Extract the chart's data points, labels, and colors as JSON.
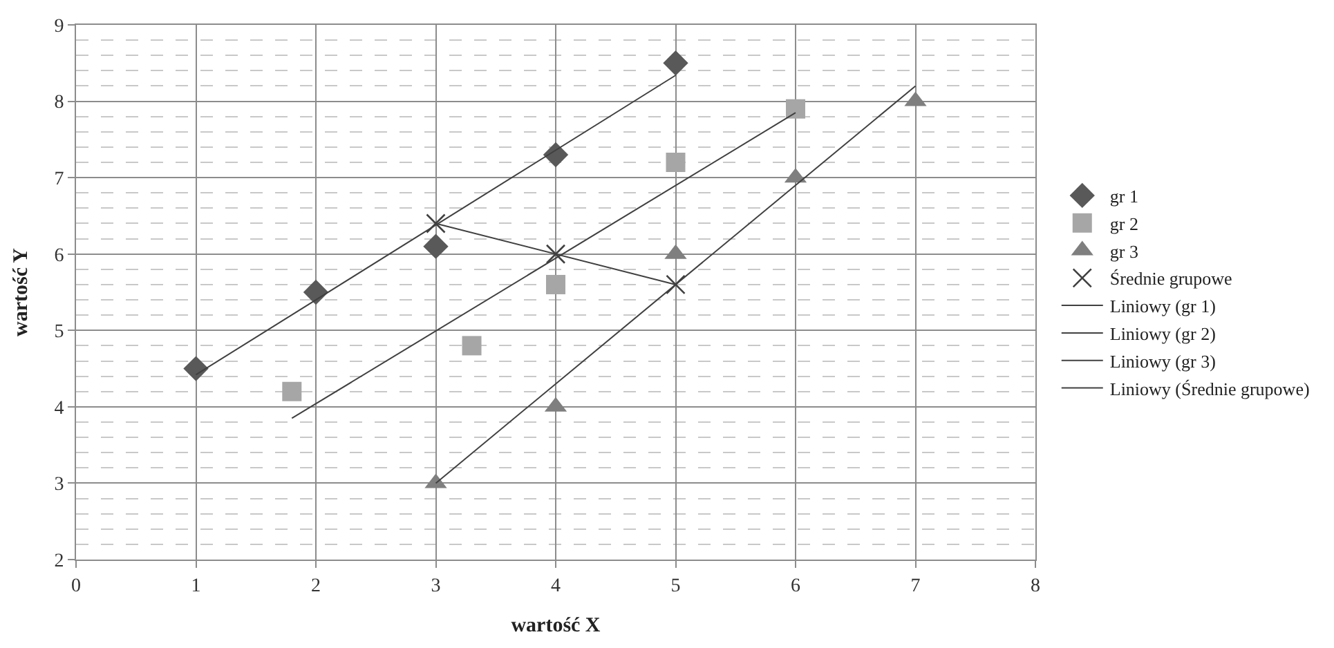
{
  "chart_data": {
    "type": "scatter",
    "xlabel": "wartość X",
    "ylabel": "wartość Y",
    "xlim": [
      0,
      8
    ],
    "xticks": [
      0,
      1,
      2,
      3,
      4,
      5,
      6,
      7,
      8
    ],
    "ylim": [
      2,
      9
    ],
    "yticks": [
      2,
      3,
      4,
      5,
      6,
      7,
      8,
      9
    ],
    "grid": true,
    "legend": "right",
    "series": [
      {
        "name": "gr 1",
        "color": "#595959",
        "marker": "diamond",
        "x": [
          1,
          2,
          3,
          4,
          5
        ],
        "values": [
          4.5,
          5.5,
          6.1,
          7.3,
          8.5
        ]
      },
      {
        "name": "gr 2",
        "color": "#a6a6a6",
        "marker": "square",
        "x": [
          1.8,
          3.3,
          4,
          5,
          6
        ],
        "values": [
          4.2,
          4.8,
          5.6,
          7.2,
          7.9
        ]
      },
      {
        "name": "gr 3",
        "color": "#7f7f7f",
        "marker": "triangle",
        "x": [
          3,
          4,
          5,
          6,
          7
        ],
        "values": [
          3,
          4,
          6,
          7,
          8
        ]
      },
      {
        "name": "Średnie grupowe",
        "color": "#404040",
        "marker": "cross",
        "x": [
          3,
          4,
          5
        ],
        "values": [
          6.4,
          6,
          5.6
        ]
      },
      {
        "name": "Liniowy (gr 1)",
        "type": "line",
        "color": "#404040",
        "marker": "none",
        "x": [
          1,
          5
        ],
        "values": [
          4.42,
          8.34
        ]
      },
      {
        "name": "Liniowy (gr 2)",
        "type": "line",
        "color": "#404040",
        "marker": "none",
        "x": [
          1.8,
          6
        ],
        "values": [
          3.85,
          7.85
        ]
      },
      {
        "name": "Liniowy (gr 3)",
        "type": "line",
        "color": "#404040",
        "marker": "none",
        "x": [
          3,
          7
        ],
        "values": [
          3,
          8.2
        ]
      },
      {
        "name": "Liniowy (Średnie grupowe)",
        "type": "line",
        "color": "#404040",
        "marker": "none",
        "x": [
          3,
          5
        ],
        "values": [
          6.4,
          5.6
        ]
      }
    ]
  }
}
